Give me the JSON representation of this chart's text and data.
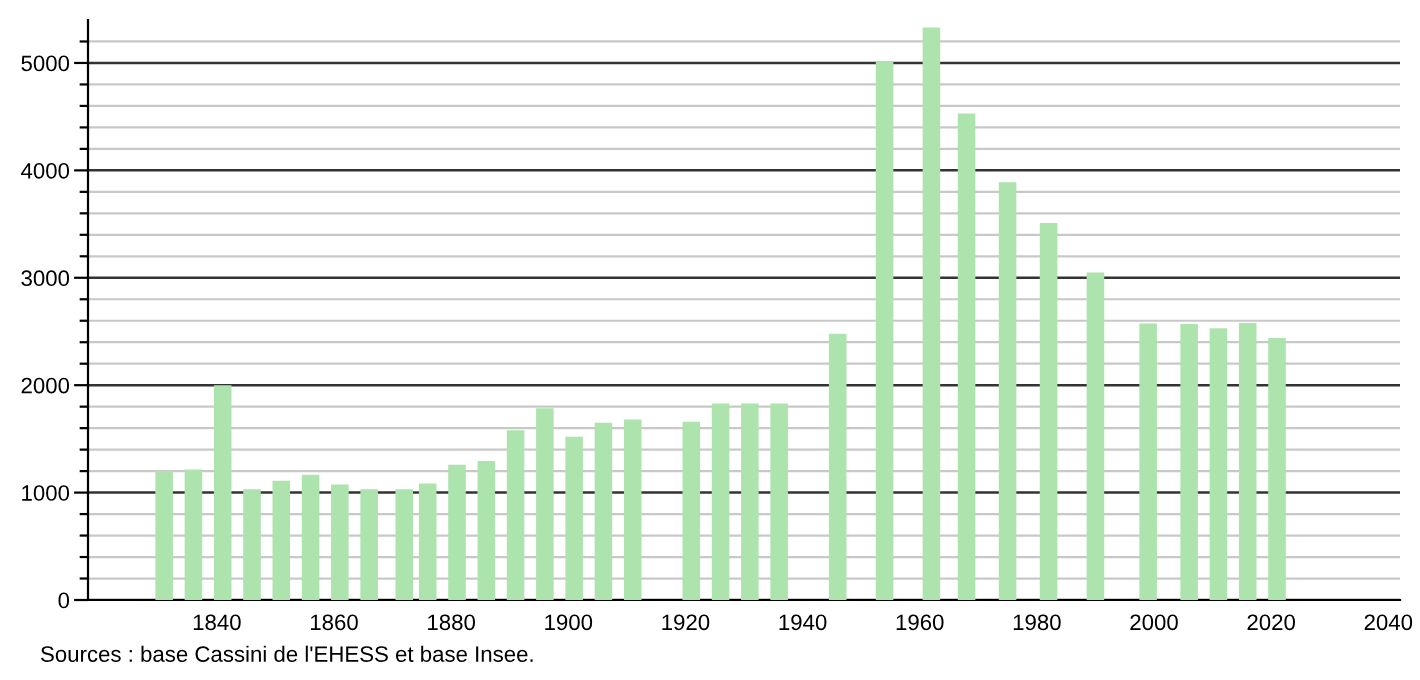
{
  "chart_data": {
    "type": "bar",
    "x": [
      1831,
      1836,
      1841,
      1846,
      1851,
      1856,
      1861,
      1866,
      1872,
      1876,
      1881,
      1886,
      1891,
      1896,
      1901,
      1906,
      1911,
      1921,
      1926,
      1931,
      1936,
      1946,
      1954,
      1962,
      1968,
      1975,
      1982,
      1990,
      1999,
      2006,
      2011,
      2016,
      2021
    ],
    "values": [
      1200,
      1215,
      2000,
      1030,
      1110,
      1165,
      1075,
      1030,
      1030,
      1085,
      1260,
      1295,
      1580,
      1785,
      1520,
      1650,
      1680,
      1660,
      1830,
      1830,
      1830,
      2480,
      5010,
      5330,
      4530,
      3890,
      3510,
      3050,
      2575,
      2570,
      2530,
      2580,
      2440
    ],
    "color": "#ade3ad",
    "xlim": [
      1818,
      2042
    ],
    "xticks": [
      1840,
      1860,
      1880,
      1900,
      1920,
      1940,
      1960,
      1980,
      2000,
      2020,
      2040
    ],
    "ylim": [
      0,
      5400
    ],
    "yticks": [
      0,
      {
        "value": 200,
        "label": null
      },
      {
        "value": 400,
        "label": null
      },
      {
        "value": 600,
        "label": null
      },
      {
        "value": 800,
        "label": null
      },
      1000,
      {
        "value": 1200,
        "label": null
      },
      {
        "value": 1400,
        "label": null
      },
      {
        "value": 1600,
        "label": null
      },
      {
        "value": 1800,
        "label": null
      },
      2000,
      {
        "value": 2200,
        "label": null
      },
      {
        "value": 2400,
        "label": null
      },
      {
        "value": 2600,
        "label": null
      },
      {
        "value": 2800,
        "label": null
      },
      3000,
      {
        "value": 3200,
        "label": null
      },
      {
        "value": 3400,
        "label": null
      },
      {
        "value": 3600,
        "label": null
      },
      {
        "value": 3800,
        "label": null
      },
      4000,
      {
        "value": 4200,
        "label": null
      },
      {
        "value": 4400,
        "label": null
      },
      {
        "value": 4600,
        "label": null
      },
      {
        "value": 4800,
        "label": null
      },
      5000,
      {
        "value": 5200,
        "label": null
      }
    ],
    "grid": "y",
    "annotations": [
      "Sources : base Cassini de l'EHESS et base Insee."
    ]
  }
}
